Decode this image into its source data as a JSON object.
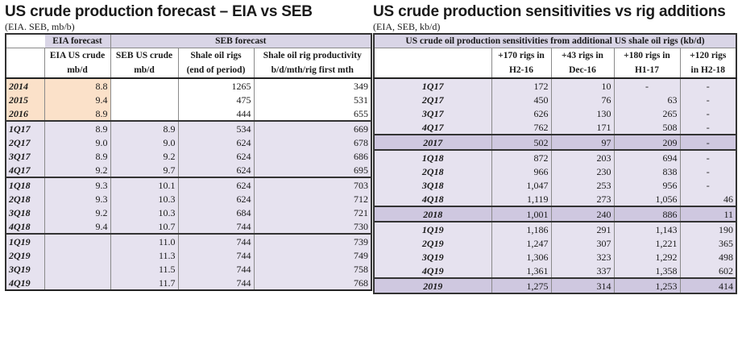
{
  "left": {
    "title": "US crude production forecast – EIA vs SEB",
    "subtitle": "(EIA. SEB, mb/b)",
    "group_headers": [
      "EIA forecast",
      "SEB forecast"
    ],
    "col_headers_1": [
      "EIA US crude",
      "SEB US crude",
      "Shale oil rigs",
      "Shale oil rig productivity"
    ],
    "col_headers_2": [
      "mb/d",
      "mb/d",
      "(end of period)",
      "b/d/mth/rig first mth"
    ],
    "rows": [
      {
        "label": "2014",
        "eia": "8.8",
        "seb": "",
        "rigs": "1265",
        "prod": "349"
      },
      {
        "label": "2015",
        "eia": "9.4",
        "seb": "",
        "rigs": "475",
        "prod": "531"
      },
      {
        "label": "2016",
        "eia": "8.9",
        "seb": "",
        "rigs": "444",
        "prod": "655"
      },
      {
        "label": "1Q17",
        "eia": "8.9",
        "seb": "8.9",
        "rigs": "534",
        "prod": "669"
      },
      {
        "label": "2Q17",
        "eia": "9.0",
        "seb": "9.0",
        "rigs": "624",
        "prod": "678"
      },
      {
        "label": "3Q17",
        "eia": "8.9",
        "seb": "9.2",
        "rigs": "624",
        "prod": "686"
      },
      {
        "label": "4Q17",
        "eia": "9.2",
        "seb": "9.7",
        "rigs": "624",
        "prod": "695"
      },
      {
        "label": "1Q18",
        "eia": "9.3",
        "seb": "10.1",
        "rigs": "624",
        "prod": "703"
      },
      {
        "label": "2Q18",
        "eia": "9.3",
        "seb": "10.3",
        "rigs": "624",
        "prod": "712"
      },
      {
        "label": "3Q18",
        "eia": "9.2",
        "seb": "10.3",
        "rigs": "684",
        "prod": "721"
      },
      {
        "label": "4Q18",
        "eia": "9.4",
        "seb": "10.7",
        "rigs": "744",
        "prod": "730"
      },
      {
        "label": "1Q19",
        "eia": "",
        "seb": "11.0",
        "rigs": "744",
        "prod": "739"
      },
      {
        "label": "2Q19",
        "eia": "",
        "seb": "11.3",
        "rigs": "744",
        "prod": "749"
      },
      {
        "label": "3Q19",
        "eia": "",
        "seb": "11.5",
        "rigs": "744",
        "prod": "758"
      },
      {
        "label": "4Q19",
        "eia": "",
        "seb": "11.7",
        "rigs": "744",
        "prod": "768"
      }
    ]
  },
  "right": {
    "title": "US crude production sensitivities vs rig additions",
    "subtitle": "(EIA, SEB, kb/d)",
    "group_header": "US crude oil production sensitivities from additional US shale oil rigs (kb/d)",
    "col_headers_1": [
      "+170 rigs in",
      "+43 rigs in",
      "+180 rigs in",
      "+120 rigs"
    ],
    "col_headers_2": [
      "H2-16",
      "Dec-16",
      "H1-17",
      "in H2-18"
    ],
    "rows": [
      {
        "label": "1Q17",
        "a": "172",
        "b": "10",
        "c": "-",
        "d": "-"
      },
      {
        "label": "2Q17",
        "a": "450",
        "b": "76",
        "c": "63",
        "d": "-"
      },
      {
        "label": "3Q17",
        "a": "626",
        "b": "130",
        "c": "265",
        "d": "-"
      },
      {
        "label": "4Q17",
        "a": "762",
        "b": "171",
        "c": "508",
        "d": "-"
      },
      {
        "label": "2017",
        "a": "502",
        "b": "97",
        "c": "209",
        "d": "-"
      },
      {
        "label": "1Q18",
        "a": "872",
        "b": "203",
        "c": "694",
        "d": "-"
      },
      {
        "label": "2Q18",
        "a": "966",
        "b": "230",
        "c": "838",
        "d": "-"
      },
      {
        "label": "3Q18",
        "a": "1,047",
        "b": "253",
        "c": "956",
        "d": "-"
      },
      {
        "label": "4Q18",
        "a": "1,119",
        "b": "273",
        "c": "1,056",
        "d": "46"
      },
      {
        "label": "2018",
        "a": "1,001",
        "b": "240",
        "c": "886",
        "d": "11"
      },
      {
        "label": "1Q19",
        "a": "1,186",
        "b": "291",
        "c": "1,143",
        "d": "190"
      },
      {
        "label": "2Q19",
        "a": "1,247",
        "b": "307",
        "c": "1,221",
        "d": "365"
      },
      {
        "label": "3Q19",
        "a": "1,306",
        "b": "323",
        "c": "1,292",
        "d": "498"
      },
      {
        "label": "4Q19",
        "a": "1,361",
        "b": "337",
        "c": "1,358",
        "d": "602"
      },
      {
        "label": "2019",
        "a": "1,275",
        "b": "314",
        "c": "1,253",
        "d": "414"
      }
    ]
  }
}
